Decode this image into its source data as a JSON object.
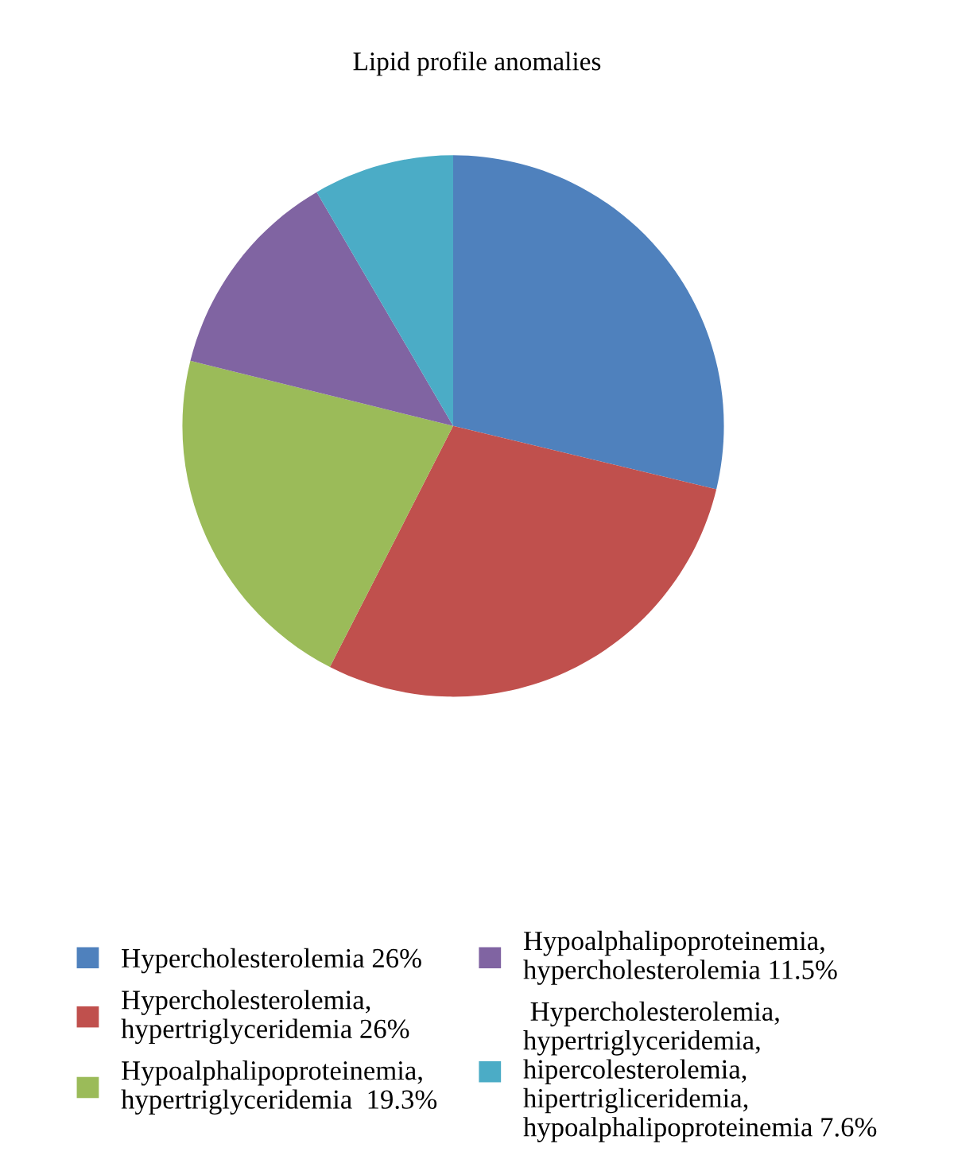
{
  "chart_data": {
    "type": "pie",
    "title": "Lipid profile anomalies",
    "categories": [
      "Hypercholesterolemia",
      "Hypercholesterolemia,\nhypertriglyceridemia",
      "Hypoalphalipoproteinemia,\nhypertriglyceridemia ",
      "Hypoalphalipoproteinemia,\nhypercholesterolemia",
      " Hypercholesterolemia,\nhypertriglyceridemia,\nhipercolesterolemia,\nhipertrigliceridemia,\nhypoalphalipoproteinemia"
    ],
    "values": [
      26,
      26,
      19.3,
      11.5,
      7.6
    ],
    "value_labels": [
      "26%",
      "26%",
      "19.3%",
      "11.5%",
      "7.6%"
    ],
    "colors": [
      "#4f81bd",
      "#c0504d",
      "#9bbb59",
      "#8064a2",
      "#4bacc6"
    ],
    "legend": "bottom"
  }
}
